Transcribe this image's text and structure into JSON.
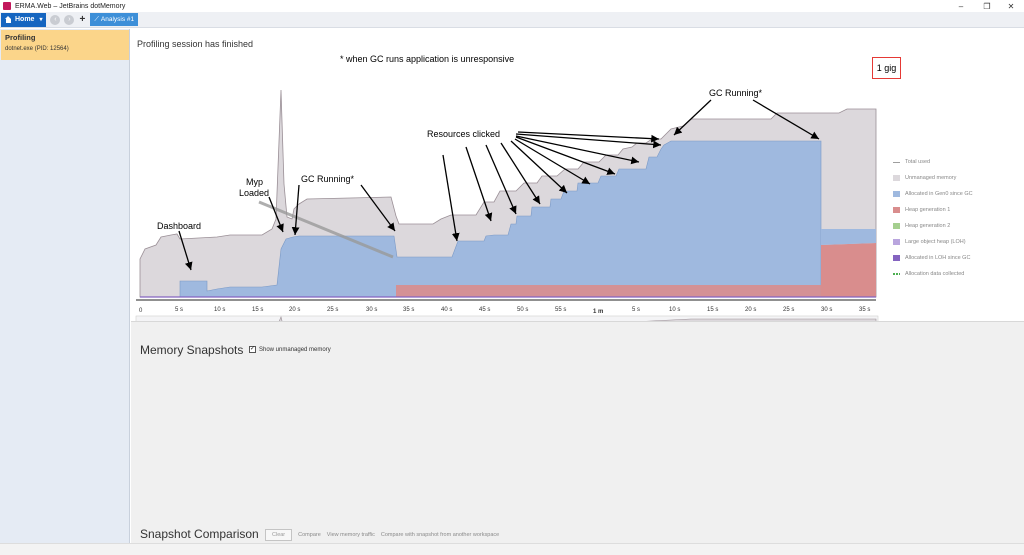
{
  "window": {
    "title": "ERMA.Web – JetBrains dotMemory",
    "controls": [
      "–",
      "❐",
      "✕"
    ]
  },
  "toolbar": {
    "home_label": "Home",
    "back_icon": "back-arrow-icon",
    "forward_icon": "forward-arrow-icon",
    "add_label": "+",
    "tab_label": "Analysis #1"
  },
  "sidebar": {
    "card_title": "Profiling",
    "card_subtitle": "dotnet.exe (PID: 12564)"
  },
  "main": {
    "session_message": "Profiling session has finished",
    "gc_note": "* when GC runs application is unresponsive",
    "gig_label": "1 gig"
  },
  "annotations": {
    "dashboard": "Dashboard",
    "myp_loaded_1": "Myp",
    "myp_loaded_2": "Loaded",
    "gc_running_1": "GC Running*",
    "resources_clicked": "Resources clicked",
    "gc_running_2": "GC Running*"
  },
  "legend": [
    {
      "label": "Total used",
      "color": "#9e9e9e"
    },
    {
      "label": "Unmanaged memory",
      "color": "#dcd8dc"
    },
    {
      "label": "Allocated in Gen0 since GC",
      "color": "#9fb9df"
    },
    {
      "label": "Heap generation 1",
      "color": "#d98d8d"
    },
    {
      "label": "Heap generation 2",
      "color": "#a5cf8f"
    },
    {
      "label": "Large object heap (LOH)",
      "color": "#b9a5de"
    },
    {
      "label": "Allocated in LOH since GC",
      "color": "#8463c0"
    },
    {
      "label": "Allocation data collected",
      "color": "#4caf50"
    }
  ],
  "timeline": {
    "ticks": [
      "0",
      "5 s",
      "10 s",
      "15 s",
      "20 s",
      "25 s",
      "30 s",
      "35 s",
      "40 s",
      "45 s",
      "50 s",
      "55 s",
      "1 m",
      "5 s",
      "10 s",
      "15 s",
      "20 s",
      "25 s",
      "30 s",
      "35 s"
    ]
  },
  "snapshots": {
    "title": "Memory Snapshots",
    "show_unmanaged_label": "Show unmanaged memory",
    "show_unmanaged_checked": "✓"
  },
  "comparison": {
    "title": "Snapshot Comparison",
    "clear_label": "Clear",
    "compare_label": "Compare",
    "traffic_label": "View memory traffic",
    "other_workspace_label": "Compare with snapshot from another workspace"
  },
  "colors": {
    "accent": "#1565c0",
    "tab": "#3d8fd8",
    "sidebar_card": "#fbd58a",
    "annotation_box": "#e53935"
  }
}
